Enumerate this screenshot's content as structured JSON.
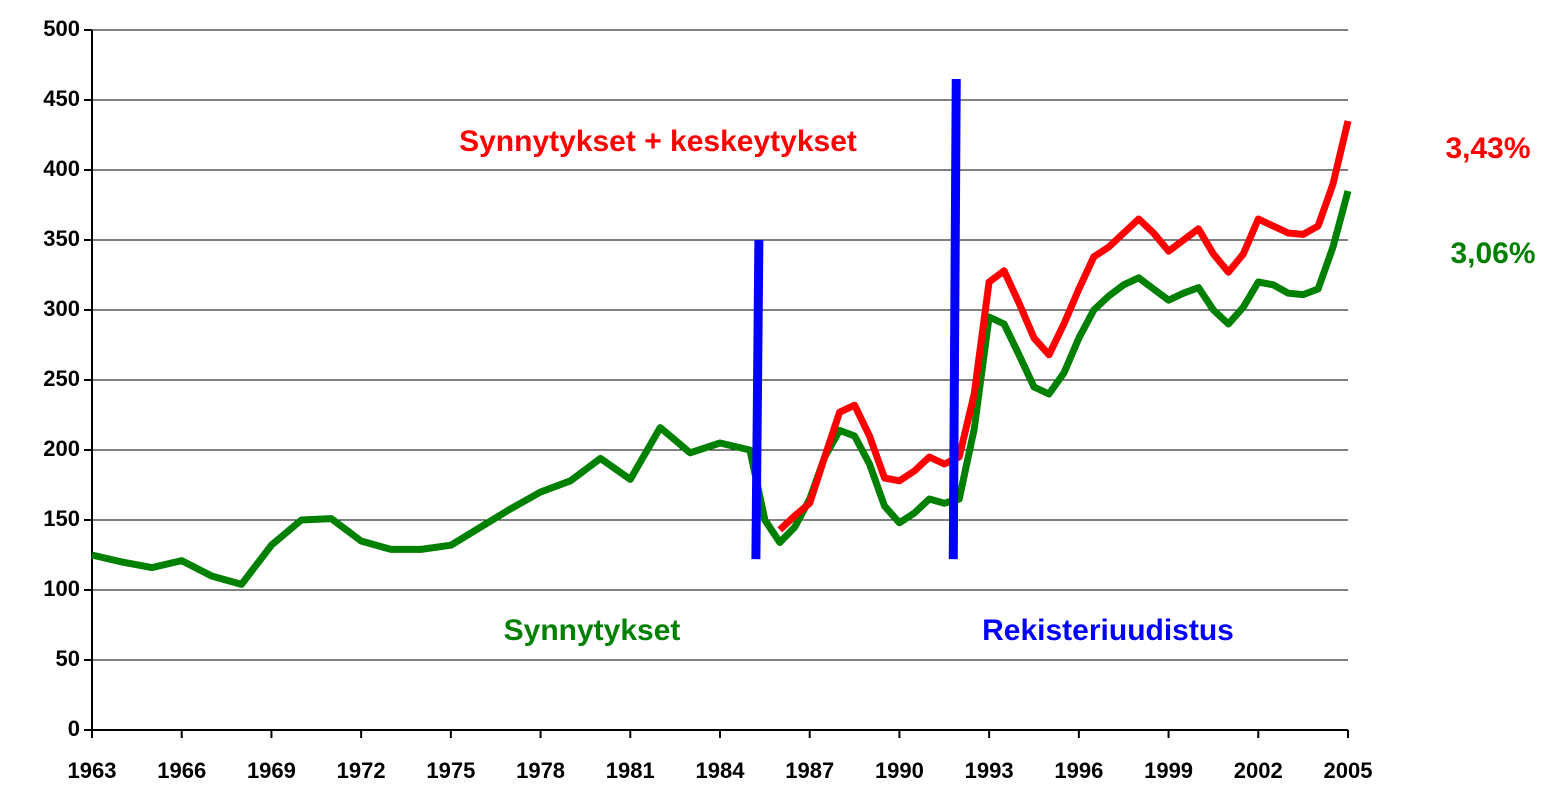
{
  "chart_data": {
    "type": "line",
    "x": [
      1963,
      1964,
      1965,
      1966,
      1967,
      1968,
      1969,
      1970,
      1971,
      1972,
      1973,
      1974,
      1975,
      1976,
      1977,
      1978,
      1979,
      1980,
      1981,
      1982,
      1983,
      1984,
      1985,
      1985.5,
      1986,
      1986.5,
      1987,
      1987.5,
      1988,
      1988.5,
      1989,
      1989.5,
      1990,
      1990.5,
      1991,
      1991.5,
      1992,
      1992.5,
      1993,
      1993.5,
      1994,
      1994.5,
      1995,
      1995.5,
      1996,
      1996.5,
      1997,
      1997.5,
      1998,
      1998.5,
      1999,
      1999.5,
      2000,
      2000.5,
      2001,
      2001.5,
      2002,
      2002.5,
      2003,
      2003.5,
      2004,
      2004.5,
      2005
    ],
    "series": [
      {
        "name": "Synnytykset",
        "color": "#008000",
        "values": [
          125,
          120,
          116,
          121,
          110,
          104,
          132,
          150,
          151,
          135,
          129,
          129,
          132,
          145,
          158,
          170,
          178,
          194,
          179,
          216,
          198,
          205,
          200,
          150,
          134,
          145,
          165,
          195,
          214,
          210,
          190,
          160,
          148,
          155,
          165,
          162,
          165,
          215,
          295,
          290,
          268,
          245,
          240,
          255,
          280,
          300,
          310,
          318,
          323,
          315,
          307,
          312,
          316,
          300,
          290,
          302,
          320,
          318,
          312,
          311,
          315,
          345,
          385
        ],
        "end_label": "3,06%"
      },
      {
        "name": "Synnytykset + keskeytykset",
        "color": "#ff0000",
        "values": [
          null,
          null,
          null,
          null,
          null,
          null,
          null,
          null,
          null,
          null,
          null,
          null,
          null,
          null,
          null,
          null,
          null,
          null,
          null,
          null,
          null,
          null,
          null,
          null,
          143,
          153,
          162,
          195,
          227,
          232,
          210,
          180,
          178,
          185,
          195,
          190,
          195,
          240,
          320,
          328,
          305,
          280,
          268,
          290,
          315,
          338,
          345,
          355,
          365,
          355,
          342,
          350,
          358,
          340,
          327,
          340,
          365,
          360,
          355,
          354,
          360,
          390,
          435
        ],
        "end_label": "3,43%"
      }
    ],
    "markers": {
      "label": "Rekisteriuudistus",
      "color": "#0000ff",
      "lines": [
        {
          "x": 1985.2,
          "ymin": 122,
          "ymax": 350
        },
        {
          "x": 1991.8,
          "ymin": 122,
          "ymax": 465
        }
      ]
    },
    "xlim": [
      1963,
      2005
    ],
    "xticks": [
      1963,
      1966,
      1969,
      1972,
      1975,
      1978,
      1981,
      1984,
      1987,
      1990,
      1993,
      1996,
      1999,
      2002,
      2005
    ],
    "ylim": [
      0,
      500
    ],
    "yticks": [
      0,
      50,
      100,
      150,
      200,
      250,
      300,
      350,
      400,
      450,
      500
    ],
    "grid": true
  }
}
